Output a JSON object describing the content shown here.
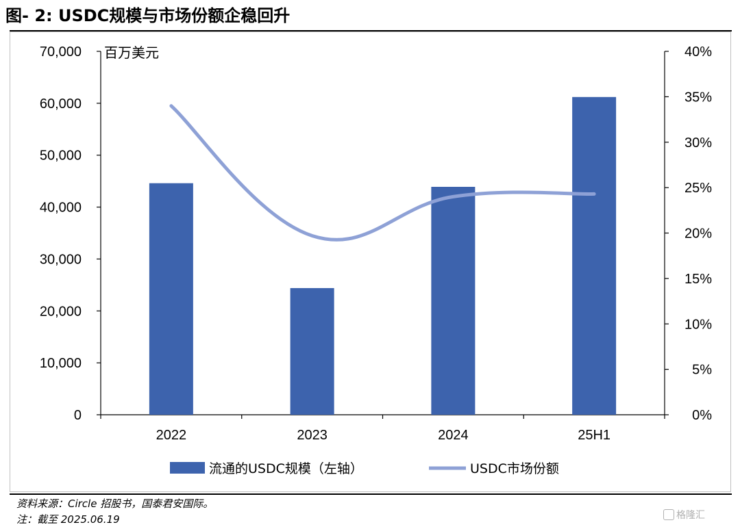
{
  "figure": {
    "title": "图- 2:  USDC规模与市场份额企稳回升",
    "source_note": "资料来源：Circle 招股书，国泰君安国际。",
    "date_note": "注：截至 2025.06.19",
    "watermark": "格隆汇"
  },
  "chart_data": {
    "type": "bar",
    "categories": [
      "2022",
      "2023",
      "2024",
      "25H1"
    ],
    "series": [
      {
        "name": "流通的USDC规模（左轴）",
        "kind": "bar",
        "axis": "left",
        "color": "#3d63ad",
        "values": [
          44600,
          24400,
          43900,
          61200
        ]
      },
      {
        "name": "USDC市场份额",
        "kind": "line",
        "axis": "right",
        "color": "#8ea1d6",
        "values": [
          0.34,
          0.197,
          0.24,
          0.243
        ]
      }
    ],
    "left_axis": {
      "unit_label": "百万美元",
      "ylim": [
        0,
        70000
      ],
      "ticks": [
        0,
        10000,
        20000,
        30000,
        40000,
        50000,
        60000,
        70000
      ],
      "tick_labels": [
        "0",
        "10,000",
        "20,000",
        "30,000",
        "40,000",
        "50,000",
        "60,000",
        "70,000"
      ]
    },
    "right_axis": {
      "ylim": [
        0,
        0.4
      ],
      "ticks": [
        0,
        0.05,
        0.1,
        0.15,
        0.2,
        0.25,
        0.3,
        0.35,
        0.4
      ],
      "tick_labels": [
        "0%",
        "5%",
        "10%",
        "15%",
        "20%",
        "25%",
        "30%",
        "35%",
        "40%"
      ]
    },
    "grid": false,
    "legend_position": "bottom"
  }
}
